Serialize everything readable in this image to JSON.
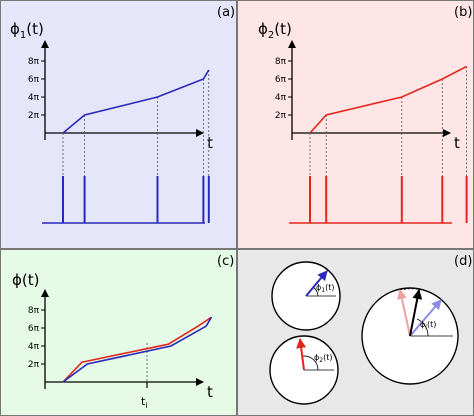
{
  "panels": {
    "a": {
      "label": "(a)",
      "y_label": "ϕ",
      "y_sub": "1",
      "y_arg": "(t)",
      "t_label": "t",
      "ticks": [
        "2π",
        "4π",
        "6π",
        "8π"
      ],
      "phase_curve": [
        [
          0,
          0
        ],
        [
          0.8,
          1
        ],
        [
          3.5,
          2
        ],
        [
          5.2,
          3
        ],
        [
          5.4,
          3.5
        ]
      ],
      "spike_times": [
        0,
        0.8,
        3.5,
        5.2,
        5.4
      ],
      "background": "#e6e6fb",
      "color": "#2a2ab8"
    },
    "b": {
      "label": "(b)",
      "y_label": "ϕ",
      "y_sub": "2",
      "y_arg": "(t)",
      "t_label": "t",
      "ticks": [
        "2π",
        "4π",
        "6π",
        "8π"
      ],
      "phase_curve": [
        [
          0,
          0
        ],
        [
          0.6,
          1
        ],
        [
          3.4,
          2
        ],
        [
          4.9,
          3
        ],
        [
          5.8,
          3.7
        ]
      ],
      "spike_times": [
        0,
        0.6,
        3.4,
        4.9,
        5.8
      ],
      "background": "#ffe6e6",
      "color": "#e0261d"
    },
    "c": {
      "label": "(c)",
      "y_label": "ϕ(t)",
      "t_label": "t",
      "t_marker": "t",
      "t_marker_sub": "i",
      "ticks": [
        "2π",
        "4π",
        "6π",
        "8π"
      ],
      "blue_curve": [
        [
          0,
          0
        ],
        [
          0.9,
          1
        ],
        [
          4.0,
          2
        ],
        [
          5.3,
          3.1
        ],
        [
          5.5,
          3.6
        ]
      ],
      "red_curve": [
        [
          0,
          0
        ],
        [
          0.7,
          1.1
        ],
        [
          3.9,
          2.1
        ],
        [
          5.0,
          3.1
        ],
        [
          5.5,
          3.6
        ]
      ],
      "background": "#e6fbe6"
    },
    "d": {
      "label": "(d)",
      "circle1_label": "ϕ",
      "circle1_sub": "1",
      "circle1_arg": "(t)",
      "circle2_label": "ϕ",
      "circle2_sub": "2",
      "circle2_arg": "(t)",
      "circle3_label": "ϕ",
      "circle3_sub": "i",
      "circle3_arg": "(t)",
      "background": "#e8e8e8"
    }
  },
  "colors": {
    "blue": "#2a2ab8",
    "red": "#e0261d",
    "light_blue": "#8a8ae8",
    "pink": "#f0a0a0",
    "black": "#000000"
  }
}
